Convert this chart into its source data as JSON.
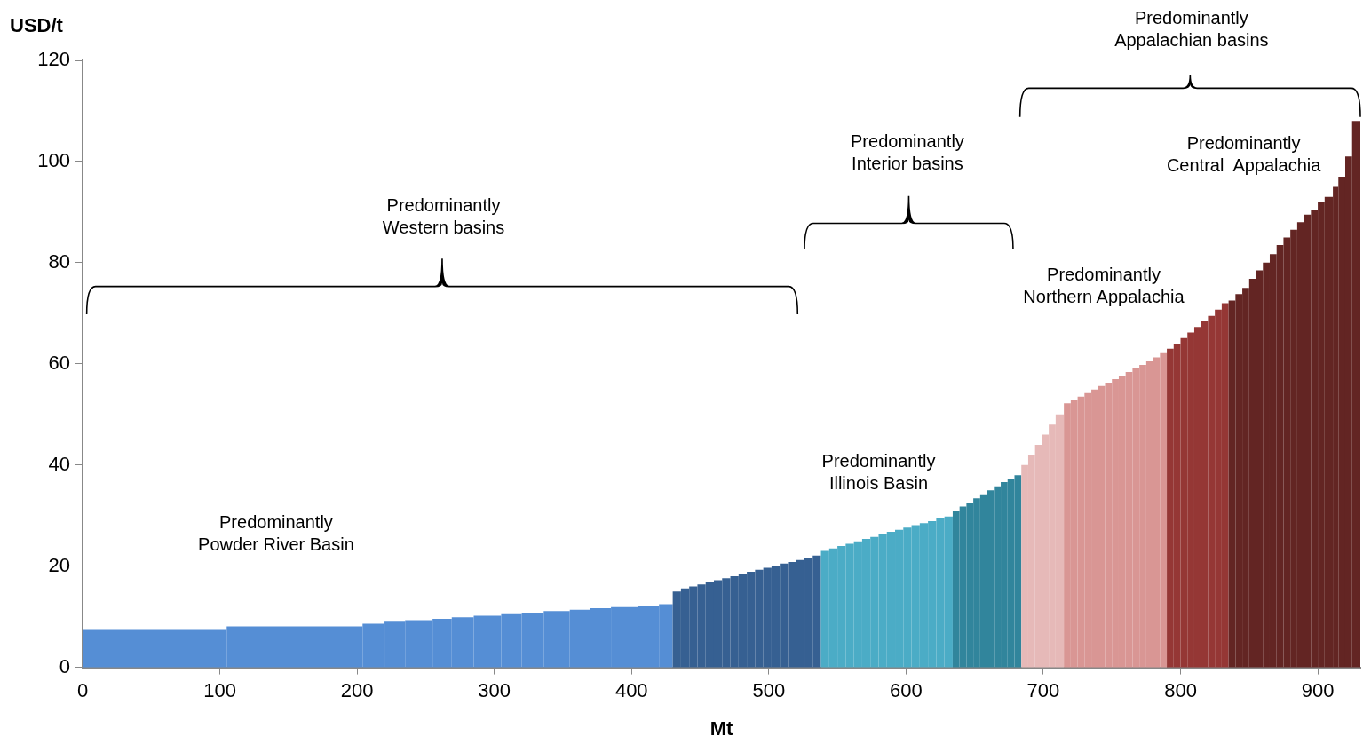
{
  "chart_data": {
    "type": "histogram",
    "xlabel": "Mt",
    "ylabel": "USD/t",
    "xlim": [
      0,
      931
    ],
    "xticks": [
      0,
      100,
      200,
      300,
      400,
      500,
      600,
      700,
      800,
      900
    ],
    "ylim": [
      0,
      120
    ],
    "yticks": [
      0,
      20,
      40,
      60,
      80,
      100,
      120
    ],
    "grid": false,
    "legend": false,
    "bins": [
      0,
      105,
      204,
      220,
      235,
      255,
      269,
      285,
      305,
      320,
      336,
      355,
      370,
      385,
      405,
      420,
      430,
      436,
      442,
      448,
      454,
      460,
      466,
      472,
      478,
      484,
      490,
      496,
      502,
      508,
      514,
      520,
      526,
      532,
      538,
      544,
      550,
      556,
      562,
      568,
      574,
      580,
      586,
      592,
      598,
      604,
      610,
      616,
      622,
      628,
      634,
      639,
      644,
      649,
      654,
      659,
      664,
      669,
      674,
      679,
      684,
      689,
      694,
      699,
      704,
      709,
      715,
      720,
      725,
      730,
      735,
      740,
      745,
      750,
      755,
      760,
      765,
      770,
      775,
      780,
      785,
      790,
      795,
      800,
      805,
      810,
      815,
      820,
      825,
      830,
      835,
      840,
      845,
      850,
      855,
      860,
      865,
      870,
      875,
      880,
      885,
      890,
      895,
      900,
      905,
      911,
      915,
      920,
      925,
      931
    ],
    "values": [
      7.4,
      8.1,
      8.6,
      9.0,
      9.3,
      9.6,
      9.9,
      10.2,
      10.5,
      10.8,
      11.1,
      11.4,
      11.7,
      11.9,
      12.2,
      12.5,
      15.0,
      15.6,
      16.0,
      16.4,
      16.8,
      17.2,
      17.6,
      18.0,
      18.5,
      18.9,
      19.3,
      19.7,
      20.1,
      20.5,
      20.8,
      21.2,
      21.6,
      22.1,
      23.0,
      23.5,
      24.0,
      24.4,
      24.9,
      25.4,
      25.8,
      26.3,
      26.8,
      27.2,
      27.6,
      28.1,
      28.5,
      28.9,
      29.4,
      29.8,
      31.0,
      31.8,
      32.6,
      33.4,
      34.2,
      35.0,
      35.8,
      36.6,
      37.3,
      38.0,
      40,
      42,
      44,
      46,
      48,
      50,
      52.2,
      52.8,
      53.5,
      54.2,
      54.9,
      55.6,
      56.3,
      57.0,
      57.7,
      58.4,
      59.1,
      59.8,
      60.5,
      61.3,
      62.1,
      63.0,
      64.0,
      65.1,
      66.2,
      67.3,
      68.4,
      69.5,
      70.7,
      72.0,
      72.5,
      73.8,
      75.0,
      76.8,
      78.5,
      80.0,
      81.7,
      83.5,
      85.0,
      86.5,
      88.0,
      89.5,
      90.5,
      92.0,
      93.0,
      95.0,
      97.0,
      101.0,
      108.0
    ],
    "colors": [
      "#558ed5",
      "#558ed5",
      "#558ed5",
      "#558ed5",
      "#558ed5",
      "#558ed5",
      "#558ed5",
      "#558ed5",
      "#558ed5",
      "#558ed5",
      "#558ed5",
      "#558ed5",
      "#558ed5",
      "#558ed5",
      "#558ed5",
      "#558ed5",
      "#366092",
      "#366092",
      "#366092",
      "#366092",
      "#366092",
      "#366092",
      "#366092",
      "#366092",
      "#366092",
      "#366092",
      "#366092",
      "#366092",
      "#366092",
      "#366092",
      "#366092",
      "#366092",
      "#366092",
      "#366092",
      "#4bacc6",
      "#4bacc6",
      "#4bacc6",
      "#4bacc6",
      "#4bacc6",
      "#4bacc6",
      "#4bacc6",
      "#4bacc6",
      "#4bacc6",
      "#4bacc6",
      "#4bacc6",
      "#4bacc6",
      "#4bacc6",
      "#4bacc6",
      "#4bacc6",
      "#4bacc6",
      "#31859c",
      "#31859c",
      "#31859c",
      "#31859c",
      "#31859c",
      "#31859c",
      "#31859c",
      "#31859c",
      "#31859c",
      "#31859c",
      "#e6b9b8",
      "#e6b9b8",
      "#e6b9b8",
      "#e6b9b8",
      "#e6b9b8",
      "#e6b9b8",
      "#d99694",
      "#d99694",
      "#d99694",
      "#d99694",
      "#d99694",
      "#d99694",
      "#d99694",
      "#d99694",
      "#d99694",
      "#d99694",
      "#d99694",
      "#d99694",
      "#d99694",
      "#d99694",
      "#d99694",
      "#953735",
      "#953735",
      "#953735",
      "#953735",
      "#953735",
      "#953735",
      "#953735",
      "#953735",
      "#953735",
      "#632523",
      "#632523",
      "#632523",
      "#632523",
      "#632523",
      "#632523",
      "#632523",
      "#632523",
      "#632523",
      "#632523",
      "#632523",
      "#632523",
      "#632523",
      "#632523",
      "#632523",
      "#632523",
      "#632523",
      "#632523",
      "#632523"
    ],
    "annotations": [
      "Predominantly\nPowder River Basin",
      "Predominantly\nIllinois Basin",
      "Predominantly\nWestern basins",
      "Predominantly\nInterior basins",
      "Predominantly\nNorthern Appalachia",
      "Predominantly\nCentral  Appalachia",
      "Predominantly\nAppalachian basins"
    ]
  }
}
